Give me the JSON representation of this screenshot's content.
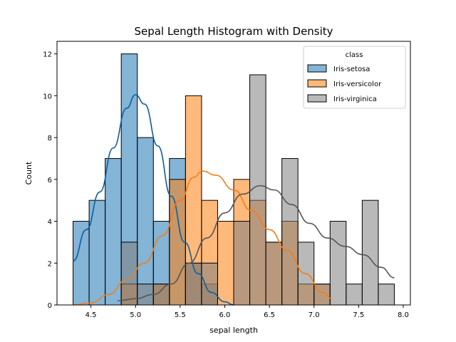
{
  "chart_data": {
    "type": "histogram",
    "title": "Sepal Length Histogram with Density",
    "xlabel": "sepal length",
    "ylabel": "Count",
    "xlim": [
      4.12,
      8.08
    ],
    "ylim": [
      0,
      12.6
    ],
    "xticks": [
      "4.5",
      "5.0",
      "5.5",
      "6.0",
      "6.5",
      "7.0",
      "7.5",
      "8.0"
    ],
    "yticks": [
      "0",
      "2",
      "4",
      "6",
      "8",
      "10",
      "12"
    ],
    "bin_edges": [
      4.3,
      4.48,
      4.66,
      4.84,
      5.02,
      5.2,
      5.38,
      5.56,
      5.74,
      5.92,
      6.1,
      6.28,
      6.46,
      6.64,
      6.82,
      7.0,
      7.18,
      7.36,
      7.54,
      7.72,
      7.9
    ],
    "legend": {
      "title": "class",
      "position": "upper right"
    },
    "series": [
      {
        "name": "Iris-setosa",
        "color": "#1f77b4",
        "line_color": "#0b5e9a",
        "counts": [
          4,
          5,
          7,
          12,
          8,
          4,
          7,
          2,
          1,
          0,
          0,
          0,
          0,
          0,
          0,
          0,
          0,
          0,
          0,
          0
        ],
        "density": [
          [
            4.3,
            2.1
          ],
          [
            4.45,
            3.6
          ],
          [
            4.6,
            5.4
          ],
          [
            4.75,
            7.5
          ],
          [
            4.9,
            9.4
          ],
          [
            5.0,
            10.05
          ],
          [
            5.1,
            9.6
          ],
          [
            5.25,
            7.6
          ],
          [
            5.4,
            5.2
          ],
          [
            5.55,
            3.0
          ],
          [
            5.7,
            1.5
          ],
          [
            5.85,
            0.6
          ],
          [
            6.0,
            0.15
          ],
          [
            6.1,
            0.0
          ]
        ]
      },
      {
        "name": "Iris-versicolor",
        "color": "#ff7f0e",
        "line_color": "#f57c1a",
        "counts": [
          0,
          0,
          0,
          1,
          0,
          1,
          6,
          10,
          5,
          4,
          6,
          5,
          3,
          4,
          1,
          1,
          0,
          0,
          0,
          0
        ],
        "density": [
          [
            4.3,
            0.0
          ],
          [
            4.5,
            0.1
          ],
          [
            4.7,
            0.5
          ],
          [
            4.9,
            1.2
          ],
          [
            5.1,
            2.0
          ],
          [
            5.3,
            3.3
          ],
          [
            5.5,
            5.0
          ],
          [
            5.65,
            6.1
          ],
          [
            5.75,
            6.4
          ],
          [
            5.9,
            6.2
          ],
          [
            6.1,
            5.5
          ],
          [
            6.3,
            4.5
          ],
          [
            6.5,
            3.6
          ],
          [
            6.7,
            2.6
          ],
          [
            6.9,
            1.5
          ],
          [
            7.1,
            0.6
          ],
          [
            7.2,
            0.3
          ]
        ]
      },
      {
        "name": "Iris-virginica",
        "color": "#7f7f7f",
        "line_color": "#555555",
        "counts": [
          0,
          0,
          0,
          3,
          1,
          1,
          0,
          2,
          2,
          0,
          4,
          11,
          3,
          7,
          3,
          1,
          4,
          1,
          5,
          1
        ],
        "density": [
          [
            4.8,
            0.2
          ],
          [
            5.0,
            0.3
          ],
          [
            5.2,
            0.5
          ],
          [
            5.4,
            1.0
          ],
          [
            5.6,
            2.0
          ],
          [
            5.8,
            3.2
          ],
          [
            6.0,
            4.4
          ],
          [
            6.2,
            5.3
          ],
          [
            6.4,
            5.7
          ],
          [
            6.55,
            5.5
          ],
          [
            6.75,
            4.8
          ],
          [
            6.95,
            3.9
          ],
          [
            7.15,
            3.2
          ],
          [
            7.35,
            2.8
          ],
          [
            7.55,
            2.4
          ],
          [
            7.75,
            1.8
          ],
          [
            7.9,
            1.3
          ]
        ]
      }
    ]
  }
}
